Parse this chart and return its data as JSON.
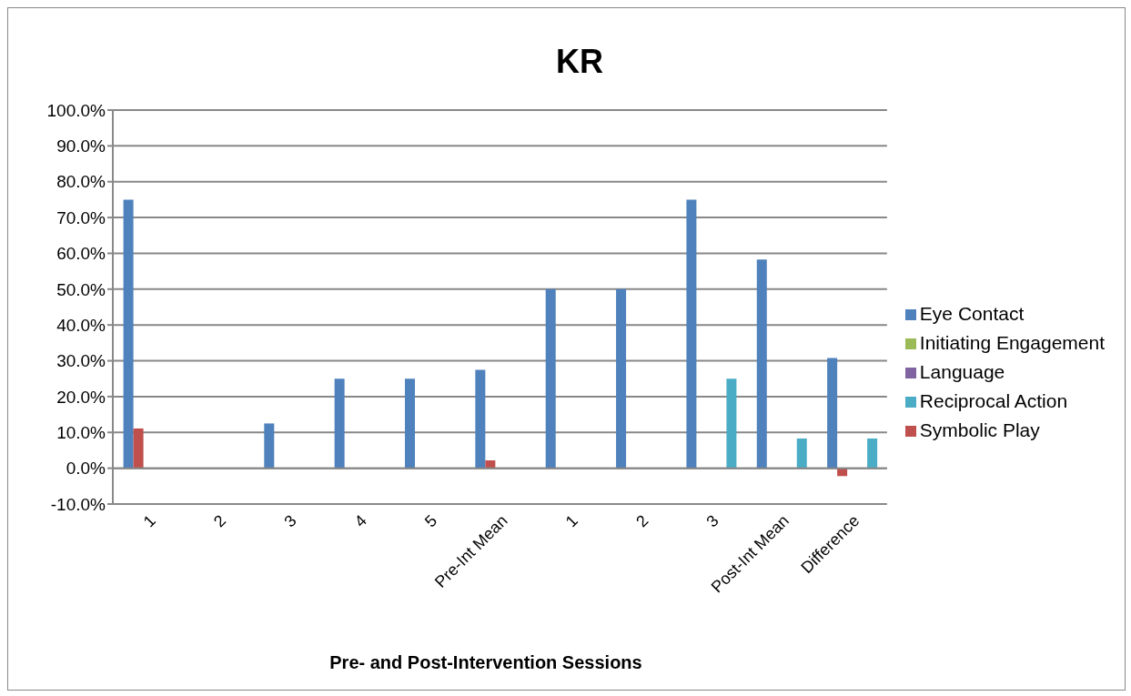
{
  "chart_data": {
    "type": "bar",
    "title": "KR",
    "xlabel": "Pre- and Post-Intervention Sessions",
    "categories": [
      "1",
      "2",
      "3",
      "4",
      "5",
      "Pre-Int Mean",
      "1",
      "2",
      "3",
      "Post-Int Mean",
      "Difference"
    ],
    "series": [
      {
        "name": "Eye Contact",
        "color": "#4f81bd",
        "values": [
          75,
          0,
          12.5,
          25,
          25,
          27.5,
          50,
          50,
          75,
          58.3,
          30.8
        ]
      },
      {
        "name": "Symbolic Play",
        "color": "#c0504d",
        "values": [
          11.1,
          0,
          0,
          0,
          0,
          2.2,
          0,
          0,
          0,
          0,
          -2.2
        ]
      },
      {
        "name": "Initiating Engagement",
        "color": "#9bbb59",
        "values": [
          0,
          0,
          0,
          0,
          0,
          0,
          0,
          0,
          0,
          0,
          0
        ]
      },
      {
        "name": "Language",
        "color": "#8064a2",
        "values": [
          0,
          0,
          0,
          0,
          0,
          0,
          0,
          0,
          0,
          0,
          0
        ]
      },
      {
        "name": "Reciprocal Action",
        "color": "#4bacc6",
        "values": [
          0,
          0,
          0,
          0,
          0,
          0,
          0,
          0,
          25,
          8.3,
          8.3
        ]
      }
    ],
    "ylim": [
      -10,
      100
    ],
    "yticks": [
      {
        "value": -10,
        "label": "-10.0%"
      },
      {
        "value": 0,
        "label": "0.0%"
      },
      {
        "value": 10,
        "label": "10.0%"
      },
      {
        "value": 20,
        "label": "20.0%"
      },
      {
        "value": 30,
        "label": "30.0%"
      },
      {
        "value": 40,
        "label": "40.0%"
      },
      {
        "value": 50,
        "label": "50.0%"
      },
      {
        "value": 60,
        "label": "60.0%"
      },
      {
        "value": 70,
        "label": "70.0%"
      },
      {
        "value": 80,
        "label": "80.0%"
      },
      {
        "value": 90,
        "label": "90.0%"
      },
      {
        "value": 100,
        "label": "100.0%"
      }
    ],
    "grid": "y",
    "legend": "right"
  }
}
